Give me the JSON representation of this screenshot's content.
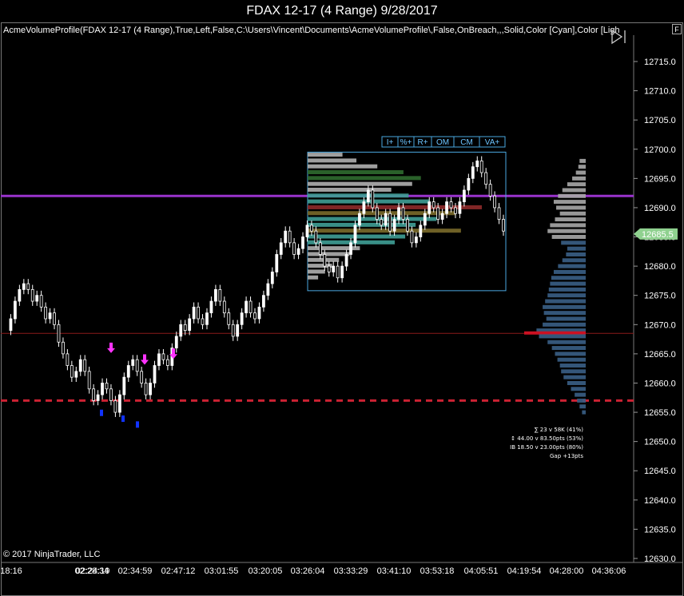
{
  "window": {
    "title": "FDAX 12-17 (4 Range)  9/28/2017",
    "panel_flag": "F"
  },
  "indicator_label": "AcmeVolumeProfile(FDAX 12-17 (4 Range),True,Left,False,C:\\Users\\Vincent\\Documents\\AcmeVolumeProfile\\,False,OnBreach,,,Solid,Color [Cyan],Color [Ligh",
  "copyright": "© 2017 NinjaTrader, LLC",
  "profile_buttons": [
    "I+",
    "%+",
    "R+",
    "OM",
    "CM",
    "VA+"
  ],
  "profile_stats": [
    "∑ 23 v 58K (41%)",
    "↕ 44.00 v 83.50pts (53%)",
    "IB 18.50 v 23.00pts (80%)",
    "Gap +13pts"
  ],
  "colors": {
    "background": "#000000",
    "candle": "#ffffff",
    "purple_line": "#9933cc",
    "red_dash": "#cc2233",
    "profile_blue": "#3a5f86",
    "profile_gray": "#a9a9a9",
    "poc_red": "#cc1122",
    "box_border": "#4aa8e0",
    "price_label_bg": "#8fd18f",
    "buy_arrow": "#ff33ff",
    "sell_arrow": "#1133ff"
  },
  "chart_data": {
    "type": "candlestick",
    "instrument": "FDAX 12-17 (4 Range)",
    "date": "9/28/2017",
    "ylim": [
      12630,
      12718
    ],
    "y_ticks": [
      "12715.0",
      "12710.0",
      "12705.0",
      "12700.0",
      "12695.0",
      "12690.0",
      "12685.0",
      "12680.0",
      "12675.0",
      "12670.0",
      "12665.0",
      "12660.0",
      "12655.0",
      "12650.0",
      "12645.0",
      "12640.0",
      "12635.0",
      "12630.0"
    ],
    "x_ticks": [
      "18:16",
      "02:24:19",
      "02:28:34",
      "02:34:59",
      "02:47:12",
      "03:01:55",
      "03:20:05",
      "03:26:04",
      "03:33:29",
      "03:41:10",
      "03:53:18",
      "04:05:51",
      "04:19:54",
      "04:28:00",
      "04:36:06"
    ],
    "last_price_label": "12685.5",
    "horizontal_levels": [
      {
        "name": "purple-level",
        "price": 12692.0,
        "style": "solid"
      },
      {
        "name": "red-dashed-level",
        "price": 12657.0,
        "style": "dashed"
      },
      {
        "name": "thin-red-level",
        "price": 12668.5,
        "style": "solid"
      }
    ],
    "price_path": [
      12669,
      12671,
      12674,
      12676,
      12677,
      12676,
      12674,
      12675,
      12673,
      12671,
      12672,
      12670,
      12667,
      12665,
      12663,
      12661,
      12662,
      12664,
      12662,
      12659,
      12657,
      12658,
      12660,
      12659,
      12657,
      12655,
      12658,
      12661,
      12663,
      12664,
      12662,
      12660,
      12658,
      12660,
      12663,
      12665,
      12664,
      12663,
      12666,
      12668,
      12670,
      12669,
      12671,
      12673,
      12671,
      12670,
      12672,
      12674,
      12676,
      12674,
      12672,
      12670,
      12668,
      12670,
      12672,
      12674,
      12672,
      12671,
      12673,
      12675,
      12677,
      12679,
      12682,
      12684,
      12686,
      12684,
      12682,
      12683,
      12685,
      12687,
      12686,
      12684,
      12682,
      12680,
      12679,
      12680,
      12678,
      12680,
      12682,
      12684,
      12687,
      12689,
      12691,
      12693,
      12690,
      12688,
      12687,
      12689,
      12686,
      12688,
      12690,
      12688,
      12686,
      12684,
      12685,
      12687,
      12689,
      12691,
      12690,
      12688,
      12689,
      12691,
      12690,
      12689,
      12691,
      12693,
      12695,
      12697,
      12698,
      12696,
      12694,
      12692,
      12690,
      12688,
      12686
    ],
    "composite_profile": [
      {
        "price": 12698,
        "vol": 0.1
      },
      {
        "price": 12697,
        "vol": 0.12
      },
      {
        "price": 12696,
        "vol": 0.16
      },
      {
        "price": 12695,
        "vol": 0.22
      },
      {
        "price": 12694,
        "vol": 0.3
      },
      {
        "price": 12693,
        "vol": 0.38
      },
      {
        "price": 12692,
        "vol": 0.45
      },
      {
        "price": 12691,
        "vol": 0.52
      },
      {
        "price": 12690,
        "vol": 0.48
      },
      {
        "price": 12689,
        "vol": 0.42
      },
      {
        "price": 12688,
        "vol": 0.5
      },
      {
        "price": 12687,
        "vol": 0.58
      },
      {
        "price": 12686,
        "vol": 0.62
      },
      {
        "price": 12685,
        "vol": 0.55
      },
      {
        "price": 12684,
        "vol": 0.4
      },
      {
        "price": 12683,
        "vol": 0.3
      },
      {
        "price": 12682,
        "vol": 0.32
      },
      {
        "price": 12681,
        "vol": 0.38
      },
      {
        "price": 12680,
        "vol": 0.45
      },
      {
        "price": 12679,
        "vol": 0.52
      },
      {
        "price": 12678,
        "vol": 0.56
      },
      {
        "price": 12677,
        "vol": 0.58
      },
      {
        "price": 12676,
        "vol": 0.6
      },
      {
        "price": 12675,
        "vol": 0.62
      },
      {
        "price": 12674,
        "vol": 0.66
      },
      {
        "price": 12673,
        "vol": 0.7
      },
      {
        "price": 12672,
        "vol": 0.68
      },
      {
        "price": 12671,
        "vol": 0.64
      },
      {
        "price": 12670,
        "vol": 0.7
      },
      {
        "price": 12669,
        "vol": 0.8
      },
      {
        "price": 12668.5,
        "vol": 1.0
      },
      {
        "price": 12668,
        "vol": 0.76
      },
      {
        "price": 12667,
        "vol": 0.62
      },
      {
        "price": 12666,
        "vol": 0.55
      },
      {
        "price": 12665,
        "vol": 0.5
      },
      {
        "price": 12664,
        "vol": 0.46
      },
      {
        "price": 12663,
        "vol": 0.42
      },
      {
        "price": 12662,
        "vol": 0.4
      },
      {
        "price": 12661,
        "vol": 0.36
      },
      {
        "price": 12660,
        "vol": 0.3
      },
      {
        "price": 12659,
        "vol": 0.24
      },
      {
        "price": 12658,
        "vol": 0.18
      },
      {
        "price": 12657,
        "vol": 0.14
      },
      {
        "price": 12656,
        "vol": 0.1
      },
      {
        "price": 12655,
        "vol": 0.06
      }
    ],
    "session_profile": [
      {
        "price": 12699,
        "vol": 0.2,
        "band": "gray"
      },
      {
        "price": 12698,
        "vol": 0.28,
        "band": "gray"
      },
      {
        "price": 12697,
        "vol": 0.4,
        "band": "gray"
      },
      {
        "price": 12696,
        "vol": 0.55,
        "band": "green"
      },
      {
        "price": 12695,
        "vol": 0.65,
        "band": "green"
      },
      {
        "price": 12694,
        "vol": 0.6,
        "band": "gray"
      },
      {
        "price": 12693,
        "vol": 0.48,
        "band": "gray"
      },
      {
        "price": 12692,
        "vol": 0.58,
        "band": "teal"
      },
      {
        "price": 12691,
        "vol": 0.7,
        "band": "teal"
      },
      {
        "price": 12690,
        "vol": 1.0,
        "band": "red"
      },
      {
        "price": 12689,
        "vol": 0.85,
        "band": "olive"
      },
      {
        "price": 12688,
        "vol": 0.74,
        "band": "teal"
      },
      {
        "price": 12687,
        "vol": 0.62,
        "band": "teal"
      },
      {
        "price": 12686,
        "vol": 0.88,
        "band": "olive"
      },
      {
        "price": 12685,
        "vol": 0.56,
        "band": "teal"
      },
      {
        "price": 12684,
        "vol": 0.5,
        "band": "teal"
      },
      {
        "price": 12683,
        "vol": 0.3,
        "band": "gray"
      },
      {
        "price": 12682,
        "vol": 0.24,
        "band": "gray"
      },
      {
        "price": 12681,
        "vol": 0.18,
        "band": "gray"
      },
      {
        "price": 12680,
        "vol": 0.14,
        "band": "gray"
      },
      {
        "price": 12679,
        "vol": 0.1,
        "band": "gray"
      },
      {
        "price": 12678,
        "vol": 0.06,
        "band": "gray"
      }
    ],
    "buy_signals": [
      12665,
      12663,
      12664
    ],
    "sell_signals": [
      12656,
      12655,
      12654
    ]
  }
}
